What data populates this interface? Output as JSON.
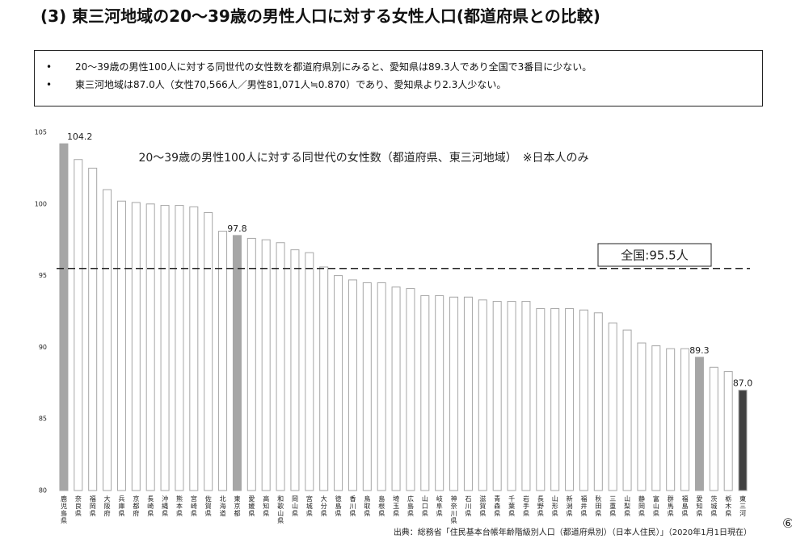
{
  "header": {
    "title": "(3) 東三河地域の20～39歳の男性人口に対する女性人口(都道府県との比較)"
  },
  "summary": {
    "bullets": [
      "20～39歳の男性100人に対する同世代の女性数を都道府県別にみると、愛知県は89.3人であり全国で3番目に少ない。",
      "東三河地域は87.0人（女性70,566人／男性81,071人≒0.870）であり、愛知県より2.3人少ない。"
    ]
  },
  "chart_data": {
    "type": "bar",
    "title": "20～39歳の男性100人に対する同世代の女性数（都道府県、東三河地域）　※日本人のみ",
    "categories": [
      "鹿児島県",
      "奈良県",
      "福岡県",
      "大阪府",
      "兵庫県",
      "京都府",
      "長崎県",
      "沖縄県",
      "熊本県",
      "宮崎県",
      "佐賀県",
      "北海道",
      "東京都",
      "愛媛県",
      "高知県",
      "和歌山県",
      "岡山県",
      "宮城県",
      "大分県",
      "徳島県",
      "香川県",
      "鳥取県",
      "島根県",
      "埼玉県",
      "広島県",
      "山口県",
      "岐阜県",
      "神奈川県",
      "石川県",
      "滋賀県",
      "青森県",
      "千葉県",
      "岩手県",
      "長野県",
      "山形県",
      "新潟県",
      "福井県",
      "秋田県",
      "三重県",
      "山梨県",
      "静岡県",
      "富山県",
      "群馬県",
      "福島県",
      "愛知県",
      "茨城県",
      "栃木県",
      "東三河"
    ],
    "values": [
      104.2,
      103.1,
      102.5,
      101.0,
      100.2,
      100.1,
      100.0,
      99.9,
      99.9,
      99.8,
      99.4,
      98.1,
      97.8,
      97.6,
      97.5,
      97.3,
      96.8,
      96.6,
      95.6,
      95.0,
      94.7,
      94.5,
      94.5,
      94.2,
      94.1,
      93.6,
      93.6,
      93.5,
      93.5,
      93.3,
      93.2,
      93.2,
      93.2,
      92.7,
      92.7,
      92.7,
      92.6,
      92.4,
      91.7,
      91.2,
      90.3,
      90.1,
      89.9,
      89.9,
      89.3,
      88.6,
      88.3,
      87.0
    ],
    "value_labels": [
      "104.2",
      null,
      null,
      null,
      null,
      null,
      null,
      null,
      null,
      null,
      null,
      null,
      "97.8",
      null,
      null,
      null,
      null,
      null,
      null,
      null,
      null,
      null,
      null,
      null,
      null,
      null,
      null,
      null,
      null,
      null,
      null,
      null,
      null,
      null,
      null,
      null,
      null,
      null,
      null,
      null,
      null,
      null,
      null,
      null,
      "89.3",
      null,
      null,
      "87.0"
    ],
    "colors": [
      "#a6a6a6",
      "#ffffff",
      "#ffffff",
      "#ffffff",
      "#ffffff",
      "#ffffff",
      "#ffffff",
      "#ffffff",
      "#ffffff",
      "#ffffff",
      "#ffffff",
      "#ffffff",
      "#a6a6a6",
      "#ffffff",
      "#ffffff",
      "#ffffff",
      "#ffffff",
      "#ffffff",
      "#ffffff",
      "#ffffff",
      "#ffffff",
      "#ffffff",
      "#ffffff",
      "#ffffff",
      "#ffffff",
      "#ffffff",
      "#ffffff",
      "#ffffff",
      "#ffffff",
      "#ffffff",
      "#ffffff",
      "#ffffff",
      "#ffffff",
      "#ffffff",
      "#ffffff",
      "#ffffff",
      "#ffffff",
      "#ffffff",
      "#ffffff",
      "#ffffff",
      "#ffffff",
      "#ffffff",
      "#ffffff",
      "#ffffff",
      "#a6a6a6",
      "#ffffff",
      "#ffffff",
      "#404040"
    ],
    "edge_color": "#a6a6a6",
    "reference": {
      "value": 95.5,
      "label": "全国:95.5人"
    },
    "ylim": [
      80,
      105
    ],
    "yticks": [
      80,
      85,
      90,
      95,
      100,
      105
    ],
    "grid": false
  },
  "footer": {
    "source": "出典：総務省「住民基本台帳年齢階級別人口（都道府県別）（日本人住民）」（2020年1月1日現在）",
    "page": "⑥"
  }
}
